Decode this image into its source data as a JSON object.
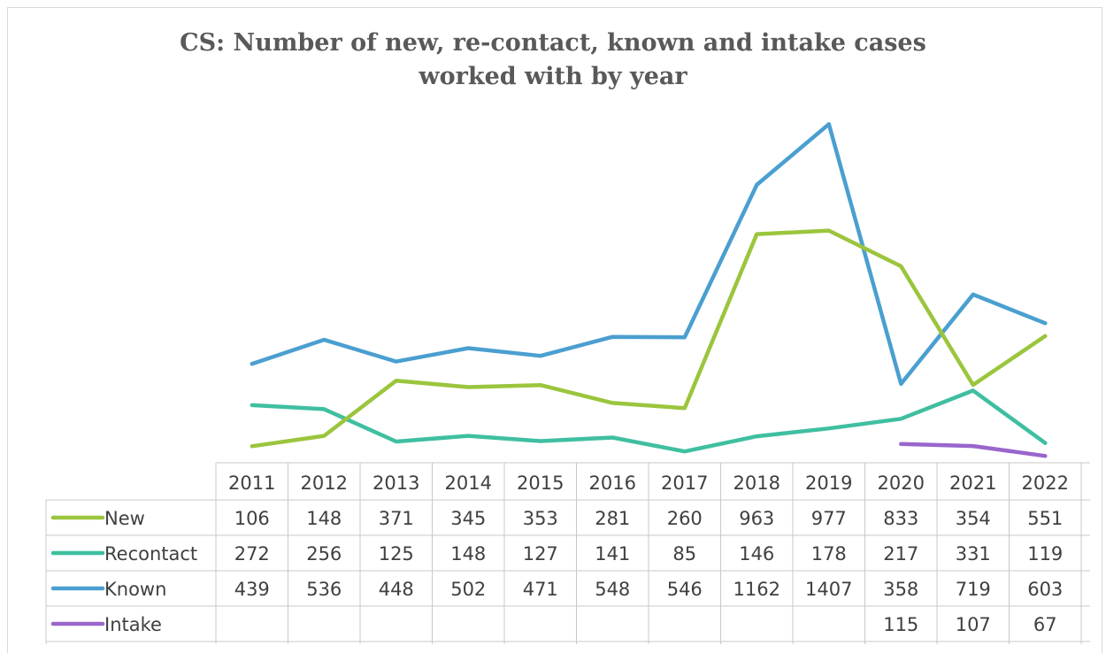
{
  "chart_data": {
    "type": "line",
    "title_lines": [
      "CS: Number of new, re-contact, known and intake cases",
      "worked with by year"
    ],
    "categories": [
      "2011",
      "2012",
      "2013",
      "2014",
      "2015",
      "2016",
      "2017",
      "2018",
      "2019",
      "2020",
      "2021",
      "2022"
    ],
    "series": [
      {
        "name": "New",
        "color": "#9bc53d",
        "values": [
          106,
          148,
          371,
          345,
          353,
          281,
          260,
          963,
          977,
          833,
          354,
          551
        ]
      },
      {
        "name": "Recontact",
        "color": "#3fbfa0",
        "values": [
          272,
          256,
          125,
          148,
          127,
          141,
          85,
          146,
          178,
          217,
          331,
          119
        ]
      },
      {
        "name": "Known",
        "color": "#4a9fd0",
        "values": [
          439,
          536,
          448,
          502,
          471,
          548,
          546,
          1162,
          1407,
          358,
          719,
          603
        ]
      },
      {
        "name": "Intake",
        "color": "#9966cc",
        "values": [
          null,
          null,
          null,
          null,
          null,
          null,
          null,
          null,
          null,
          115,
          107,
          67
        ]
      }
    ],
    "data_table": true,
    "legend": "data-table",
    "grid": false
  }
}
